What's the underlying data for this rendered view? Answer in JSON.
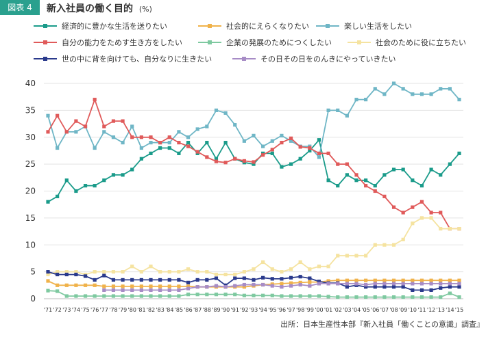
{
  "header": {
    "fig_tag": "図表 4",
    "title": "新入社員の働く目的",
    "unit": "(%)"
  },
  "source": "出所：日本生産性本部『新入社員「働くことの意識」調査』",
  "chart_data": {
    "type": "line",
    "x": [
      "'71",
      "'72",
      "'73",
      "'74",
      "'75",
      "'76",
      "'77",
      "'78",
      "'79",
      "'80",
      "'81",
      "'82",
      "'83",
      "'84",
      "'85",
      "'86",
      "'87",
      "'88",
      "'89",
      "'90",
      "'91",
      "'92",
      "'93",
      "'94",
      "'95",
      "'96",
      "'97",
      "'98",
      "'99",
      "'00",
      "'01",
      "'02",
      "'03",
      "'04",
      "'05",
      "'06",
      "'07",
      "'08",
      "'09",
      "'10",
      "'11",
      "'12",
      "'13",
      "'14",
      "'15"
    ],
    "ylim": [
      0,
      40
    ],
    "yticks": [
      0,
      5,
      10,
      15,
      20,
      25,
      30,
      35,
      40
    ],
    "grid": true,
    "legend_position": "top",
    "series": [
      {
        "name": "経済的に豊かな生活を送りたい",
        "color": "#1a9b8a",
        "values": [
          18,
          19,
          22,
          20,
          21,
          21,
          22,
          23,
          23,
          24,
          26,
          27,
          28,
          28,
          27,
          29,
          27,
          29,
          26,
          29,
          26,
          25.3,
          25,
          27,
          27,
          24.5,
          25,
          26,
          27.5,
          29.5,
          22,
          21,
          23,
          22,
          22,
          21,
          23,
          24,
          24,
          22,
          21,
          24,
          23,
          25,
          27
        ]
      },
      {
        "name": "社会的にえらくなりたい",
        "color": "#f0b24a",
        "values": [
          3.3,
          2.5,
          2.5,
          2.5,
          2.5,
          2.5,
          2.3,
          2.3,
          2.3,
          2.3,
          2.3,
          2.3,
          2.3,
          2.3,
          2.3,
          2.3,
          2.2,
          2.2,
          2.2,
          2.2,
          2.2,
          2.2,
          2.4,
          2.6,
          2.7,
          2.8,
          2.9,
          3.0,
          3.1,
          3.1,
          3.3,
          3.4,
          3.4,
          3.4,
          3.4,
          3.4,
          3.4,
          3.4,
          3.4,
          3.4,
          3.4,
          3.4,
          3.4,
          3.4,
          3.4
        ]
      },
      {
        "name": "楽しい生活をしたい",
        "color": "#6fb6c6",
        "values": [
          34,
          28,
          31,
          31,
          32,
          28,
          31,
          30,
          29,
          32,
          28,
          29,
          29,
          29,
          31,
          30,
          31.5,
          32,
          35,
          34.5,
          32.3,
          29.3,
          30.3,
          28.3,
          29.3,
          30.3,
          29.3,
          28.3,
          28.3,
          26.3,
          35,
          35,
          34,
          37,
          37,
          39,
          38,
          40,
          39,
          38,
          38,
          38,
          39,
          39,
          37
        ]
      },
      {
        "name": "自分の能力をためす生き方をしたい",
        "color": "#e05a5a",
        "values": [
          31,
          34,
          31,
          33,
          32,
          37,
          32,
          33,
          33,
          30,
          30,
          30,
          29,
          30,
          29,
          28.3,
          27.3,
          26.3,
          25.5,
          25.3,
          26,
          25.6,
          25.4,
          26.7,
          27.7,
          29,
          29.8,
          28.2,
          28,
          27,
          27,
          25,
          25,
          23,
          21,
          20,
          19,
          17,
          16,
          17,
          18,
          16,
          16,
          13,
          13
        ]
      },
      {
        "name": "企業の発展のためにつくしたい",
        "color": "#7ec9a0",
        "values": [
          1.5,
          1.4,
          0.5,
          0.5,
          0.5,
          0.5,
          0.5,
          0.5,
          0.5,
          0.5,
          0.5,
          0.5,
          0.5,
          0.5,
          0.5,
          0.8,
          0.8,
          0.8,
          0.8,
          0.8,
          0.8,
          0.6,
          0.6,
          0.6,
          0.6,
          0.5,
          0.5,
          0.5,
          0.5,
          0.5,
          0.4,
          0.3,
          0.3,
          0.3,
          0.3,
          0.3,
          0.3,
          0.3,
          0.3,
          0.3,
          0.3,
          0.3,
          0.3,
          1,
          0.3
        ]
      },
      {
        "name": "社会のために役に立ちたい",
        "color": "#f5e3a0",
        "values": [
          4.5,
          5,
          5,
          5,
          4.5,
          5,
          5,
          5,
          5,
          6,
          5,
          6,
          5,
          5,
          5,
          5.5,
          5,
          5,
          4.5,
          4.5,
          4.5,
          5,
          5.5,
          6.8,
          5.5,
          5,
          5.5,
          6.8,
          5.5,
          6,
          6,
          8,
          8,
          8,
          8,
          10,
          10,
          10,
          11,
          14,
          15,
          15,
          13,
          13,
          13
        ]
      },
      {
        "name": "世の中に背を向けても、自分なりに生きたい",
        "color": "#2a3a8c",
        "values": [
          5,
          4.5,
          4.5,
          4.5,
          4.2,
          3.5,
          4.3,
          3.5,
          3.5,
          3.5,
          3.5,
          3.5,
          3.5,
          3.5,
          3.5,
          3,
          3.5,
          3.5,
          3.8,
          2.5,
          3.8,
          3.8,
          3.5,
          3.9,
          3.7,
          3.7,
          3.9,
          4.1,
          3.8,
          3.2,
          2.9,
          2.9,
          2.2,
          2.5,
          2.2,
          2.2,
          2.2,
          2.2,
          2.2,
          1.6,
          1.6,
          1.6,
          2,
          2.2,
          2.2
        ]
      },
      {
        "name": "その日その日をのんきにやっていきたい",
        "color": "#a78cc6",
        "values": [
          null,
          null,
          null,
          null,
          null,
          null,
          1.6,
          1.6,
          1.6,
          1.6,
          1.6,
          1.6,
          1.6,
          1.6,
          1.6,
          1.9,
          2.2,
          2.2,
          2.4,
          2.2,
          2.4,
          2.6,
          2.6,
          2.6,
          2.4,
          2.2,
          2.4,
          2.6,
          2.4,
          2.8,
          2.8,
          2.8,
          2.8,
          2.8,
          2.6,
          2.8,
          2.8,
          2.8,
          2.8,
          2.8,
          2.8,
          2.8,
          2.8,
          2.8,
          2.8
        ]
      }
    ]
  }
}
